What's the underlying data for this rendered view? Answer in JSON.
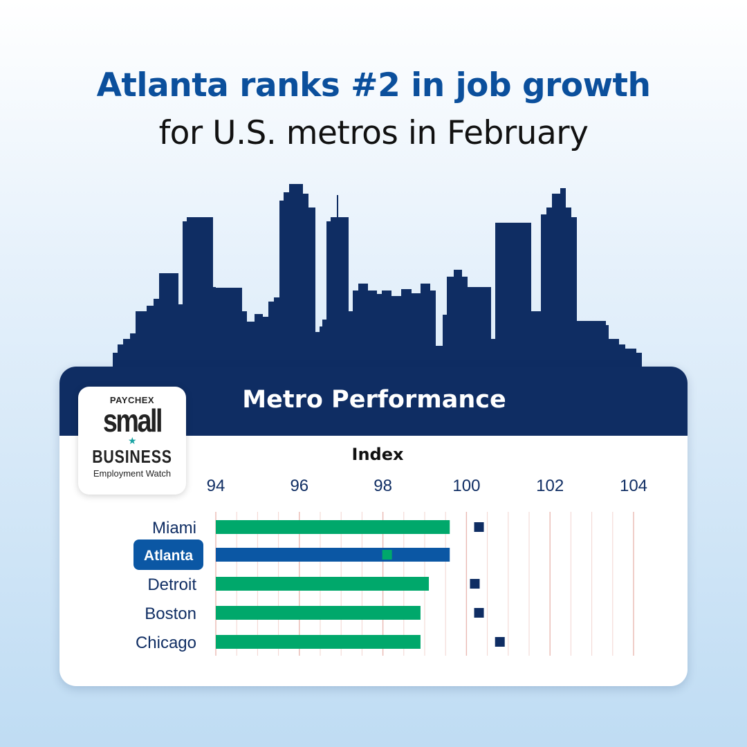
{
  "header": {
    "headline": "Atlanta ranks #2 in job growth",
    "subline": "for U.S. metros in February"
  },
  "card": {
    "title": "Metro Performance"
  },
  "logo": {
    "brand": "PAYCHEX",
    "line1": "small",
    "line2": "BUSINESS",
    "line3": "Employment Watch"
  },
  "colors": {
    "headline": "#0b4f9c",
    "navy": "#0f2d63",
    "green": "#00a86b",
    "atlanta_bar": "#0b57a4",
    "label": "#0f2d63",
    "grid": "#f2d4cf"
  },
  "chart_data": {
    "type": "bar",
    "orientation": "horizontal",
    "xlabel": "Index",
    "xlim": [
      94,
      104
    ],
    "xticks": [
      "94",
      "96",
      "98",
      "100",
      "102",
      "104"
    ],
    "categories": [
      "Miami",
      "Atlanta",
      "Detroit",
      "Boston",
      "Chicago"
    ],
    "highlight": "Atlanta",
    "series": [
      {
        "values": [
          99.6,
          99.6,
          99.1,
          98.9,
          98.9
        ],
        "marker_values": [
          null,
          98.1,
          null,
          null,
          null
        ]
      },
      {
        "type": "scatter",
        "values": [
          100.3,
          null,
          100.2,
          100.3,
          100.8
        ]
      }
    ]
  }
}
